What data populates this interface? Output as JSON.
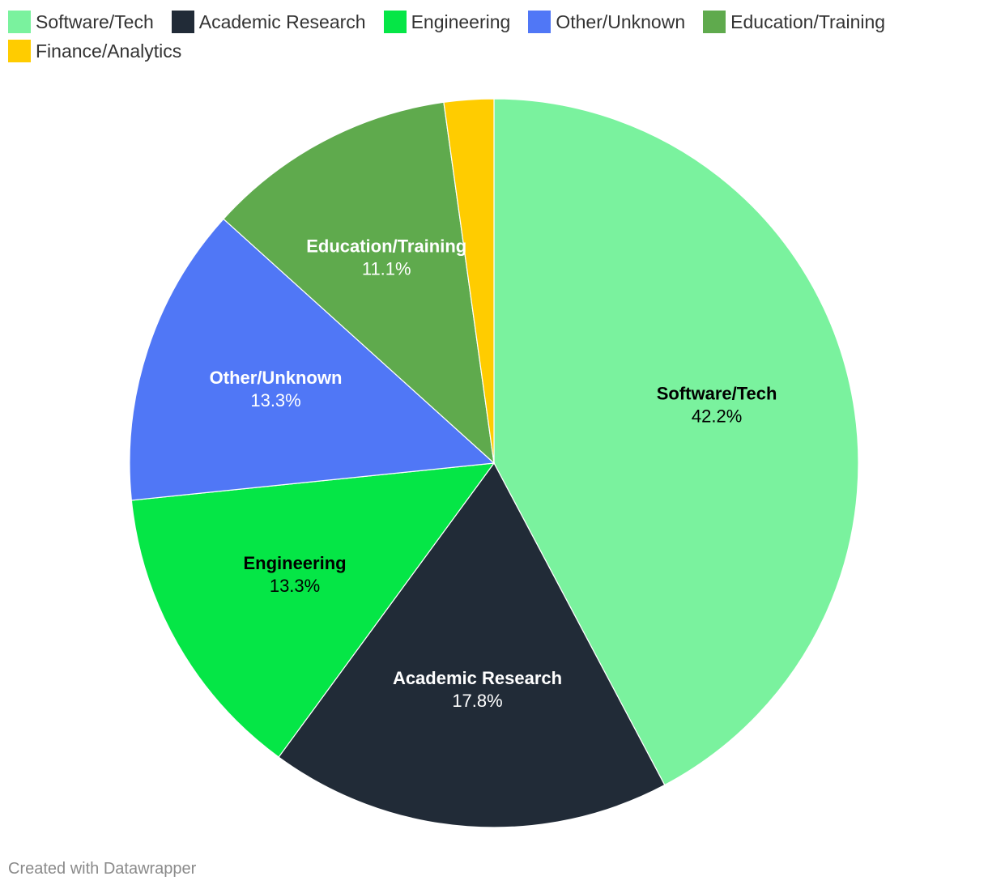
{
  "chart_data": {
    "type": "pie",
    "categories": [
      "Software/Tech",
      "Academic Research",
      "Engineering",
      "Other/Unknown",
      "Education/Training",
      "Finance/Analytics"
    ],
    "values": [
      42.2,
      17.8,
      13.3,
      13.3,
      11.1,
      2.2
    ],
    "value_labels": [
      "42.2%",
      "17.8%",
      "13.3%",
      "13.3%",
      "11.1%",
      null
    ],
    "colors": [
      "#7af29e",
      "#212b37",
      "#05e646",
      "#5077f6",
      "#5faa4d",
      "#ffcc00"
    ],
    "label_colors": [
      "#000000",
      "#ffffff",
      "#000000",
      "#ffffff",
      "#ffffff",
      "#000000"
    ],
    "credit": "Created with Datawrapper"
  }
}
